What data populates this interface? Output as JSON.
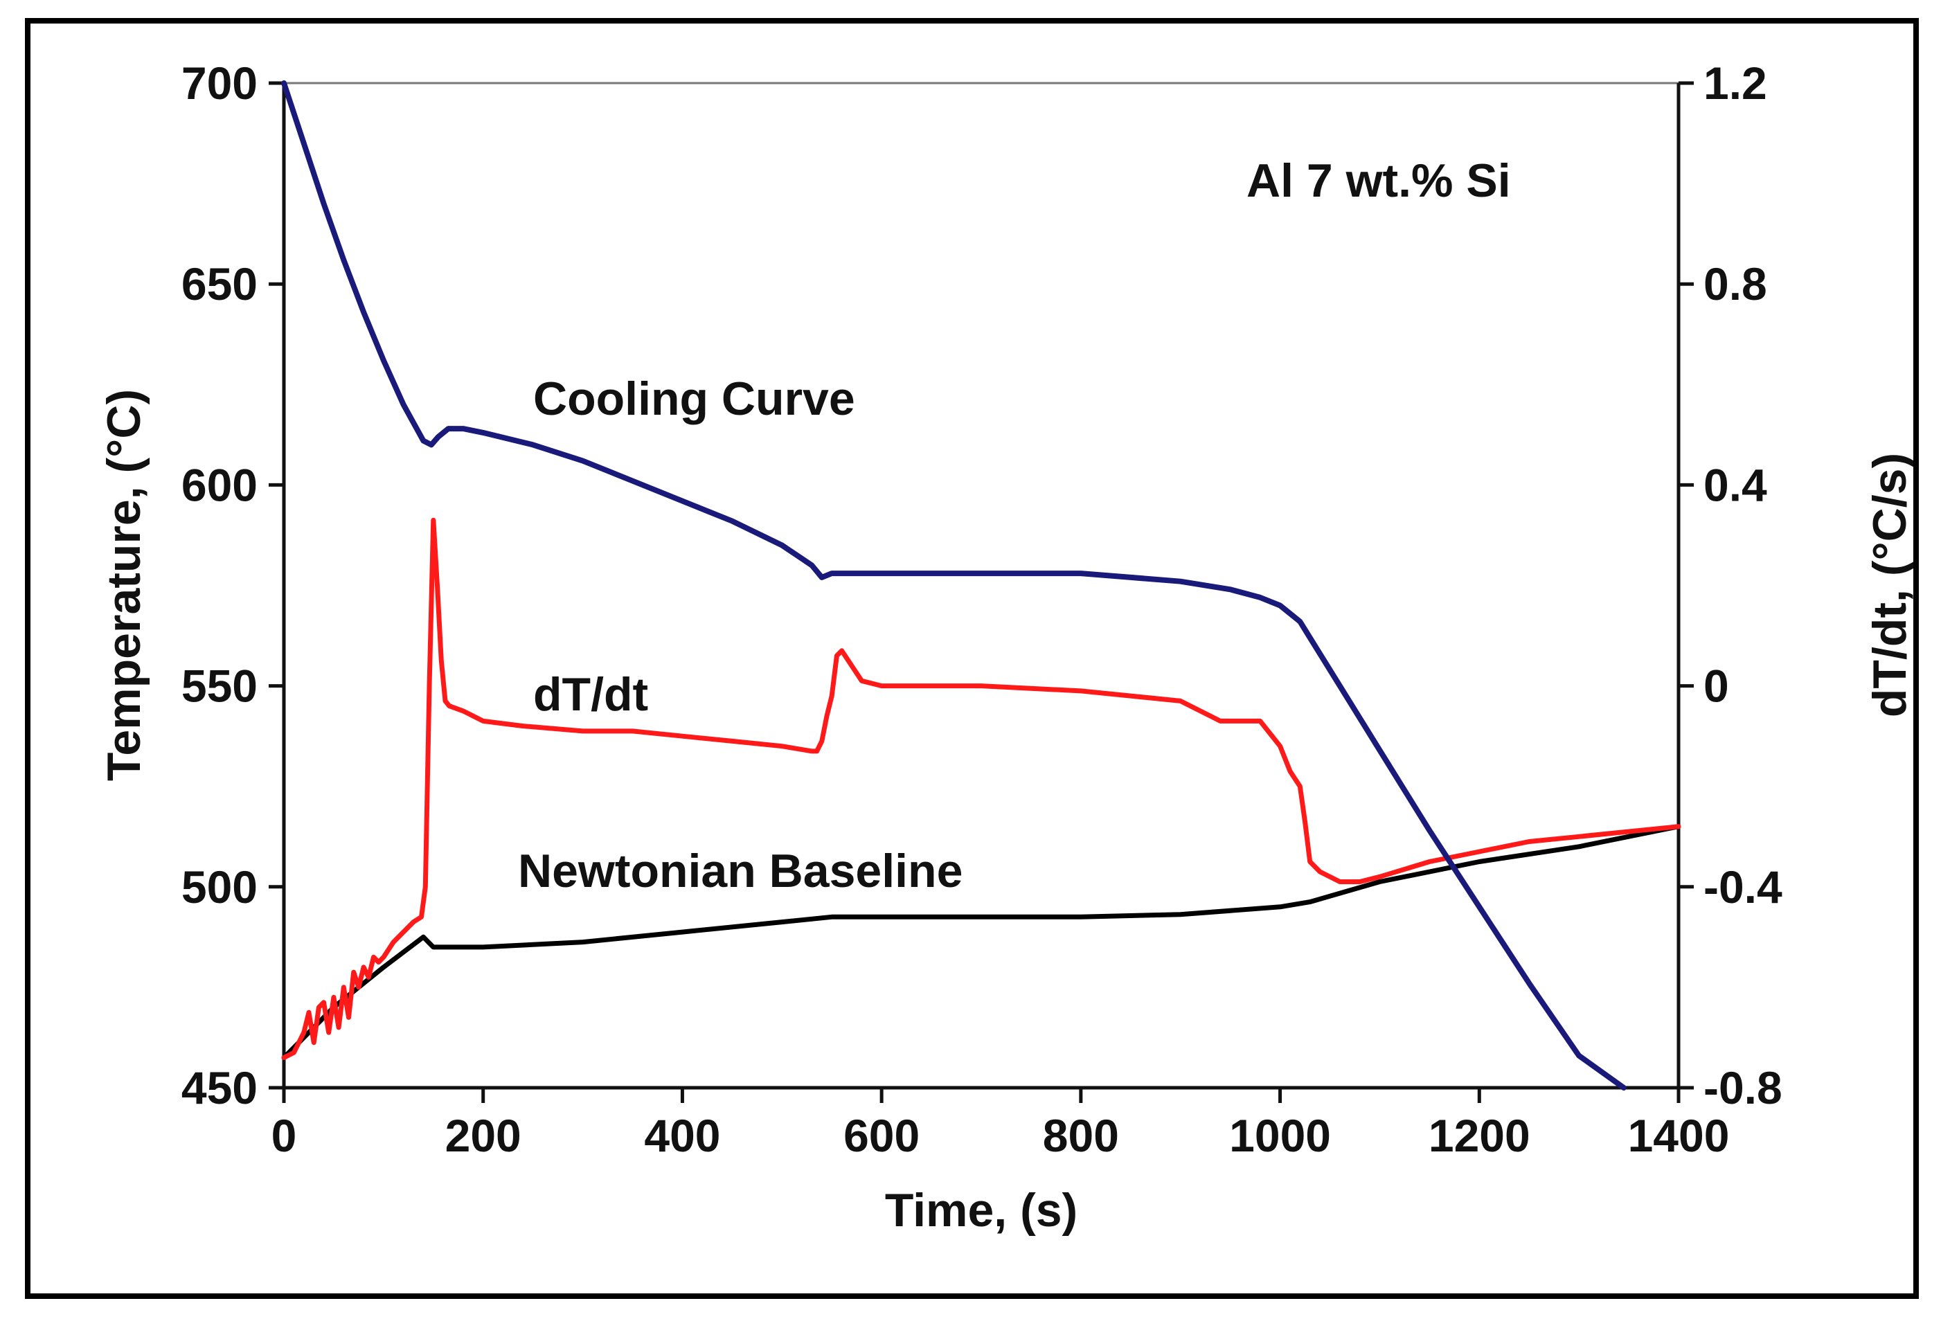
{
  "chart_data": {
    "type": "line",
    "title": "",
    "xlabel": "Time, (s)",
    "ylabel": "Temperature, (°C)",
    "y2label": "dT/dt, (°C/s)",
    "xlim": [
      0,
      1400
    ],
    "ylim": [
      450,
      700
    ],
    "y2lim": [
      -0.8,
      1.2
    ],
    "grid": false,
    "x_ticks": [
      0,
      200,
      400,
      600,
      800,
      1000,
      1200,
      1400
    ],
    "x_tick_labels": [
      "0",
      "200",
      "400",
      "600",
      "800",
      "1000",
      "1200",
      "1400"
    ],
    "y_ticks": [
      450,
      500,
      550,
      600,
      650,
      700
    ],
    "y_tick_labels": [
      "450",
      "500",
      "550",
      "600",
      "650",
      "700"
    ],
    "y2_ticks": [
      -0.8,
      -0.4,
      0,
      0.4,
      0.8,
      1.2
    ],
    "y2_tick_labels": [
      "-0.8",
      "-0.4",
      "0",
      "0.4",
      "0.8",
      "1.2"
    ],
    "annotations": [
      {
        "text": "Al 7 wt.% Si",
        "x": 1150,
        "y": 673
      },
      {
        "text": "Cooling Curve",
        "x": 250,
        "y": 608
      },
      {
        "text": "dT/dt",
        "x": 190,
        "y": 550
      },
      {
        "text": "Newtonian Baseline",
        "x": 260,
        "y": 501
      }
    ],
    "series": [
      {
        "name": "Cooling Curve",
        "axis": "left",
        "color": "#1a1a7a",
        "x": [
          0,
          20,
          40,
          60,
          80,
          100,
          120,
          140,
          148,
          155,
          165,
          180,
          200,
          250,
          300,
          350,
          400,
          450,
          500,
          530,
          540,
          550,
          560,
          600,
          650,
          700,
          750,
          800,
          850,
          900,
          950,
          980,
          1000,
          1010,
          1020,
          1030,
          1060,
          1100,
          1150,
          1200,
          1250,
          1300,
          1345
        ],
        "values": [
          700,
          685,
          670,
          656,
          643,
          631,
          620,
          611,
          610,
          612,
          614,
          614,
          613,
          610,
          606,
          601,
          596,
          591,
          585,
          580,
          577,
          578,
          578,
          578,
          578,
          578,
          578,
          578,
          577,
          576,
          574,
          572,
          570,
          568,
          566,
          562,
          550,
          534,
          514,
          495,
          476,
          458,
          450
        ]
      },
      {
        "name": "dT/dt",
        "axis": "right",
        "color": "#ff1a1a",
        "x": [
          0,
          10,
          20,
          25,
          30,
          35,
          40,
          45,
          50,
          55,
          60,
          65,
          70,
          75,
          80,
          85,
          90,
          95,
          100,
          110,
          120,
          130,
          138,
          142,
          146,
          150,
          154,
          158,
          162,
          166,
          180,
          200,
          240,
          300,
          350,
          400,
          450,
          500,
          530,
          535,
          540,
          545,
          550,
          555,
          560,
          570,
          580,
          600,
          700,
          800,
          850,
          900,
          940,
          960,
          980,
          1000,
          1010,
          1020,
          1025,
          1030,
          1040,
          1060,
          1080,
          1100,
          1150,
          1200,
          1250,
          1300,
          1350,
          1400
        ],
        "values": [
          -0.74,
          -0.73,
          -0.69,
          -0.65,
          -0.71,
          -0.64,
          -0.63,
          -0.69,
          -0.62,
          -0.68,
          -0.6,
          -0.66,
          -0.57,
          -0.6,
          -0.56,
          -0.58,
          -0.54,
          -0.55,
          -0.54,
          -0.51,
          -0.49,
          -0.47,
          -0.46,
          -0.4,
          0.0,
          0.33,
          0.2,
          0.05,
          -0.03,
          -0.04,
          -0.05,
          -0.07,
          -0.08,
          -0.09,
          -0.09,
          -0.1,
          -0.11,
          -0.12,
          -0.13,
          -0.13,
          -0.11,
          -0.06,
          -0.02,
          0.06,
          0.07,
          0.04,
          0.01,
          0.0,
          0.0,
          -0.01,
          -0.02,
          -0.03,
          -0.07,
          -0.07,
          -0.07,
          -0.12,
          -0.17,
          -0.2,
          -0.27,
          -0.35,
          -0.37,
          -0.39,
          -0.39,
          -0.38,
          -0.35,
          -0.33,
          -0.31,
          -0.3,
          -0.29,
          -0.28
        ]
      },
      {
        "name": "Newtonian Baseline",
        "axis": "right",
        "color": "#000000",
        "x": [
          0,
          50,
          100,
          140,
          150,
          200,
          300,
          400,
          500,
          550,
          600,
          700,
          800,
          900,
          1000,
          1030,
          1100,
          1200,
          1300,
          1400
        ],
        "values": [
          -0.74,
          -0.64,
          -0.56,
          -0.5,
          -0.52,
          -0.52,
          -0.51,
          -0.49,
          -0.47,
          -0.46,
          -0.46,
          -0.46,
          -0.46,
          -0.455,
          -0.44,
          -0.43,
          -0.39,
          -0.35,
          -0.32,
          -0.28
        ]
      }
    ]
  }
}
